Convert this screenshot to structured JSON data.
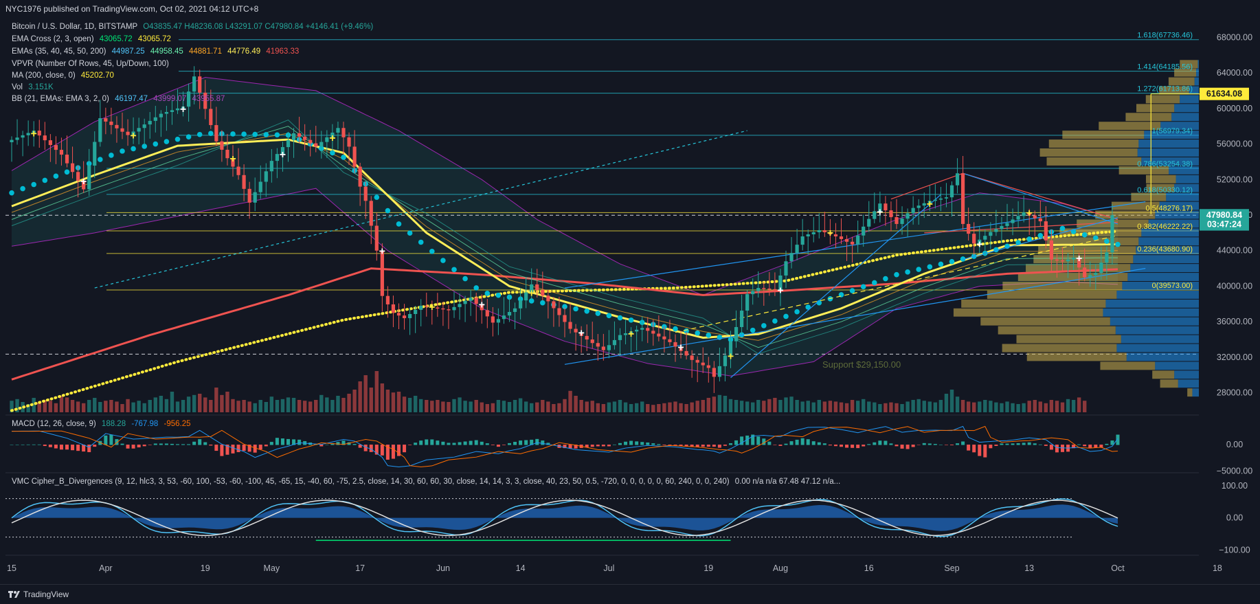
{
  "header": {
    "publisher": "NYC1976 published on TradingView.com, Oct 02, 2021 04:12 UTC+8"
  },
  "legend": {
    "symbol": "Bitcoin / U.S. Dollar, 1D, BITSTAMP",
    "ohlc": "O43835.47  H48236.08  L43291.07  C47980.84  +4146.41 (+9.46%)",
    "ema_cross": {
      "label": "EMA Cross (2, 3, open)",
      "v1": "43065.72",
      "v2": "43065.72"
    },
    "emas": {
      "label": "EMAs (35, 40, 45, 50, 200)",
      "v1": "44987.25",
      "v2": "44958.45",
      "v3": "44881.71",
      "v4": "44776.49",
      "v5": "41963.33"
    },
    "vpvr": {
      "label": "VPVR (Number Of Rows, 45, Up/Down, 100)"
    },
    "ma": {
      "label": "MA (200, close, 0)",
      "v1": "45202.70"
    },
    "vol": {
      "label": "Vol",
      "v1": "3.151K"
    },
    "bb": {
      "label": "BB (21, EMAs: EMA 3, 2, 0)",
      "v1": "46197.47",
      "v2": "43999.07",
      "v3": "43955.87"
    }
  },
  "macd_legend": {
    "label": "MACD (12, 26, close, 9)",
    "v1": "188.28",
    "v2": "-767.98",
    "v3": "-956.25"
  },
  "cipher_legend": {
    "label": "VMC Cipher_B_Divergences (9, 12, hlc3, 3, 53, -60, 100, -53, -60, -100, 45, -65, 15, -40, 60, -75, 2.5, close, 14, 30, 60, 60, 30, close, 14, 14, 3, 3, close, 40, 23, 50, 0.5, -720, 0, 0, 0, 0, 0, 60, 240, 0, 0, 240)",
    "tail": "0.00  n/a  n/a  67.48  47.12  n/a..."
  },
  "support_label": "Support $29,150.00",
  "fib_labels": [
    {
      "text": "1.618(67736.46)",
      "price": 67736.46
    },
    {
      "text": "1.414(64185.56)",
      "price": 64185.56
    },
    {
      "text": "1.272(61713.86)",
      "price": 61713.86
    },
    {
      "text": "1(56979.34)",
      "price": 56979.34
    },
    {
      "text": "0.786(53254.38)",
      "price": 53254.38
    },
    {
      "text": "0.618(50330.12)",
      "price": 50330.12
    },
    {
      "text": "0.5(48276.17)",
      "price": 48276.17
    },
    {
      "text": "0.382(46222.22)",
      "price": 46222.22
    },
    {
      "text": "0.236(43680.90)",
      "price": 43680.9
    },
    {
      "text": "0(39573.00)",
      "price": 39573.0
    }
  ],
  "price_tags": [
    {
      "text": "61634.08",
      "price": 61634.08,
      "bg": "#ffeb3b",
      "fg": "#131722"
    },
    {
      "text": "47980.84",
      "price": 47980.84,
      "bg": "#26a69a",
      "fg": "#ffffff"
    },
    {
      "text": "03:47:24",
      "price": 46950,
      "bg": "#26a69a",
      "fg": "#ffffff"
    }
  ],
  "chart_data": {
    "type": "candlestick",
    "symbol": "BTCUSD",
    "interval": "1D",
    "y_axis": {
      "ticks": [
        28000,
        32000,
        36000,
        40000,
        44000,
        48000,
        52000,
        56000,
        60000,
        64000,
        68000
      ],
      "labels": [
        "28000.00",
        "32000.00",
        "36000.00",
        "40000.00",
        "44000.00",
        "48000.00",
        "52000.00",
        "56000.00",
        "60000.00",
        "64000.00",
        "68000.00"
      ],
      "range": [
        25500,
        70500
      ]
    },
    "macd_axis": {
      "labels": [
        "0.00",
        "−5000.00"
      ],
      "values": [
        0,
        -5000
      ],
      "range": [
        -6200,
        3500
      ]
    },
    "cipher_axis": {
      "labels": [
        "100.00",
        "0.00",
        "−100.00"
      ],
      "values": [
        100,
        0,
        -100
      ],
      "range": [
        -110,
        115
      ]
    },
    "x_axis": {
      "labels": [
        "15",
        "Apr",
        "19",
        "May",
        "17",
        "Jun",
        "14",
        "Jul",
        "19",
        "Aug",
        "16",
        "Sep",
        "13",
        "Oct",
        "18"
      ],
      "day_index": [
        0,
        17,
        35,
        47,
        63,
        78,
        92,
        108,
        126,
        139,
        155,
        170,
        184,
        200,
        218
      ]
    },
    "price_path": [
      [
        0,
        56200
      ],
      [
        5,
        57500
      ],
      [
        10,
        54800
      ],
      [
        14,
        50900
      ],
      [
        17,
        58900
      ],
      [
        22,
        57000
      ],
      [
        28,
        59400
      ],
      [
        32,
        60200
      ],
      [
        34,
        63600
      ],
      [
        38,
        56300
      ],
      [
        42,
        52500
      ],
      [
        44,
        49400
      ],
      [
        48,
        54100
      ],
      [
        52,
        57200
      ],
      [
        56,
        55700
      ],
      [
        60,
        57800
      ],
      [
        62,
        55700
      ],
      [
        64,
        51200
      ],
      [
        65,
        49600
      ],
      [
        67,
        44000
      ],
      [
        68,
        38900
      ],
      [
        70,
        37000
      ],
      [
        72,
        36400
      ],
      [
        75,
        37800
      ],
      [
        80,
        37300
      ],
      [
        84,
        38700
      ],
      [
        88,
        35900
      ],
      [
        92,
        37500
      ],
      [
        95,
        40200
      ],
      [
        98,
        38300
      ],
      [
        102,
        35200
      ],
      [
        105,
        34000
      ],
      [
        108,
        32800
      ],
      [
        111,
        34500
      ],
      [
        115,
        35300
      ],
      [
        120,
        33700
      ],
      [
        124,
        31700
      ],
      [
        127,
        30800
      ],
      [
        128,
        29800
      ],
      [
        130,
        32200
      ],
      [
        132,
        35400
      ],
      [
        134,
        39100
      ],
      [
        136,
        39800
      ],
      [
        139,
        39600
      ],
      [
        141,
        42800
      ],
      [
        144,
        45600
      ],
      [
        147,
        46300
      ],
      [
        150,
        45600
      ],
      [
        153,
        44700
      ],
      [
        155,
        46700
      ],
      [
        158,
        49300
      ],
      [
        161,
        47000
      ],
      [
        164,
        48800
      ],
      [
        167,
        49600
      ],
      [
        170,
        50000
      ],
      [
        172,
        52700
      ],
      [
        173,
        47000
      ],
      [
        175,
        44800
      ],
      [
        178,
        46100
      ],
      [
        181,
        47100
      ],
      [
        184,
        48300
      ],
      [
        187,
        47300
      ],
      [
        189,
        43000
      ],
      [
        191,
        42800
      ],
      [
        193,
        43200
      ],
      [
        195,
        41000
      ],
      [
        197,
        41500
      ],
      [
        199,
        43800
      ],
      [
        200,
        47980
      ]
    ],
    "ma200": [
      [
        0,
        26000
      ],
      [
        30,
        31500
      ],
      [
        60,
        36200
      ],
      [
        90,
        39300
      ],
      [
        120,
        39800
      ],
      [
        140,
        40600
      ],
      [
        160,
        43500
      ],
      [
        180,
        45100
      ],
      [
        200,
        46200
      ]
    ],
    "ema200": [
      [
        0,
        29500
      ],
      [
        25,
        34500
      ],
      [
        50,
        39000
      ],
      [
        65,
        42000
      ],
      [
        85,
        41300
      ],
      [
        105,
        40300
      ],
      [
        125,
        39000
      ],
      [
        140,
        39500
      ],
      [
        160,
        40300
      ],
      [
        180,
        41400
      ],
      [
        200,
        41900
      ]
    ],
    "ema50": [
      [
        0,
        49000
      ],
      [
        15,
        52500
      ],
      [
        30,
        55800
      ],
      [
        50,
        56500
      ],
      [
        60,
        55000
      ],
      [
        75,
        46000
      ],
      [
        90,
        40000
      ],
      [
        110,
        36500
      ],
      [
        125,
        34200
      ],
      [
        135,
        34600
      ],
      [
        150,
        37500
      ],
      [
        165,
        41400
      ],
      [
        180,
        44600
      ],
      [
        200,
        44700
      ]
    ],
    "psar": [
      [
        0,
        50500
      ],
      [
        20,
        55200
      ],
      [
        35,
        57200
      ],
      [
        50,
        57000
      ],
      [
        60,
        54500
      ],
      [
        70,
        47000
      ],
      [
        85,
        39300
      ],
      [
        100,
        37700
      ],
      [
        115,
        35800
      ],
      [
        130,
        34000
      ],
      [
        145,
        37900
      ],
      [
        160,
        41300
      ],
      [
        175,
        43500
      ],
      [
        190,
        46500
      ],
      [
        200,
        44700
      ]
    ],
    "bb_upper": [
      [
        0,
        53000
      ],
      [
        15,
        58500
      ],
      [
        35,
        63500
      ],
      [
        55,
        62000
      ],
      [
        70,
        57500
      ],
      [
        85,
        52000
      ],
      [
        95,
        47500
      ],
      [
        110,
        42500
      ],
      [
        125,
        39000
      ],
      [
        140,
        42500
      ],
      [
        160,
        47500
      ],
      [
        175,
        50500
      ],
      [
        190,
        49300
      ],
      [
        200,
        47500
      ]
    ],
    "bb_lower": [
      [
        0,
        44500
      ],
      [
        15,
        46000
      ],
      [
        35,
        48500
      ],
      [
        55,
        51000
      ],
      [
        68,
        44000
      ],
      [
        85,
        37500
      ],
      [
        100,
        33800
      ],
      [
        115,
        31300
      ],
      [
        130,
        29900
      ],
      [
        145,
        31500
      ],
      [
        160,
        37500
      ],
      [
        175,
        40000
      ],
      [
        190,
        40500
      ],
      [
        200,
        40200
      ]
    ],
    "fib_price_levels": [
      67736.46,
      64185.56,
      61713.86,
      56979.34,
      53254.38,
      50330.12,
      48276.17,
      46222.22,
      43680.9,
      39573.0
    ],
    "support": 29150,
    "dashed_white": [
      32350,
      47980
    ],
    "vpvr_rows": [
      [
        64950,
        0.18,
        0.02
      ],
      [
        64000,
        0.22,
        0.05
      ],
      [
        63000,
        0.26,
        0.08
      ],
      [
        62000,
        0.3,
        0.18
      ],
      [
        61000,
        0.34,
        0.35
      ],
      [
        60000,
        0.38,
        0.45
      ],
      [
        59000,
        0.46,
        0.5
      ],
      [
        58000,
        0.62,
        0.7
      ],
      [
        57000,
        0.82,
        1.0
      ],
      [
        56000,
        0.9,
        1.1
      ],
      [
        55000,
        0.98,
        1.12
      ],
      [
        54000,
        0.95,
        1.05
      ],
      [
        53000,
        0.5,
        0.55
      ],
      [
        52000,
        0.3,
        0.42
      ],
      [
        51000,
        0.28,
        0.45
      ],
      [
        50000,
        0.35,
        0.6
      ],
      [
        49000,
        0.48,
        0.72
      ],
      [
        48000,
        0.6,
        0.8
      ],
      [
        47000,
        0.72,
        0.92
      ],
      [
        46000,
        0.82,
        1.05
      ],
      [
        45000,
        0.92,
        1.1
      ],
      [
        44000,
        0.98,
        1.15
      ],
      [
        43000,
        1.0,
        1.2
      ],
      [
        42000,
        1.05,
        1.25
      ],
      [
        41000,
        1.1,
        1.3
      ],
      [
        40000,
        1.2,
        1.4
      ],
      [
        39000,
        1.3,
        1.5
      ],
      [
        38000,
        1.45,
        1.7
      ],
      [
        37000,
        1.5,
        1.75
      ],
      [
        36000,
        1.3,
        1.62
      ],
      [
        35000,
        1.18,
        1.52
      ],
      [
        34000,
        1.05,
        1.42
      ],
      [
        33000,
        1.15,
        1.5
      ],
      [
        32000,
        1.0,
        1.32
      ],
      [
        31000,
        0.55,
        0.8
      ],
      [
        30000,
        0.22,
        0.45
      ],
      [
        29000,
        0.18,
        0.38
      ],
      [
        28000,
        0.05,
        0.12
      ]
    ],
    "volume": [
      0.28,
      0.32,
      0.25,
      0.2,
      0.35,
      0.24,
      0.3,
      0.28,
      0.22,
      0.4,
      0.36,
      0.3,
      0.26,
      0.22,
      0.3,
      0.35,
      0.25,
      0.28,
      0.3,
      0.26,
      0.2,
      0.32,
      0.24,
      0.28,
      0.22,
      0.3,
      0.36,
      0.4,
      0.32,
      0.5,
      0.26,
      0.3,
      0.38,
      0.42,
      0.45,
      0.36,
      0.3,
      0.6,
      0.42,
      0.5,
      0.32,
      0.28,
      0.3,
      0.26,
      0.22,
      0.3,
      0.25,
      0.38,
      0.3,
      0.32,
      0.36,
      0.35,
      0.3,
      0.28,
      0.26,
      0.3,
      0.42,
      0.36,
      0.3,
      0.4,
      0.35,
      0.45,
      0.55,
      0.75,
      0.9,
      0.6,
      1.0,
      0.7,
      0.55,
      0.48,
      0.5,
      0.38,
      0.35,
      0.4,
      0.32,
      0.3,
      0.28,
      0.3,
      0.26,
      0.25,
      0.32,
      0.36,
      0.28,
      0.26,
      0.3,
      0.24,
      0.2,
      0.22,
      0.3,
      0.28,
      0.25,
      0.3,
      0.34,
      0.26,
      0.22,
      0.24,
      0.3,
      0.26,
      0.2,
      0.22,
      0.32,
      0.52,
      0.4,
      0.3,
      0.26,
      0.28,
      0.22,
      0.2,
      0.24,
      0.26,
      0.3,
      0.24,
      0.2,
      0.22,
      0.26,
      0.2,
      0.18,
      0.2,
      0.22,
      0.24,
      0.26,
      0.22,
      0.2,
      0.24,
      0.28,
      0.3,
      0.35,
      0.38,
      0.42,
      0.4,
      0.32,
      0.3,
      0.28,
      0.26,
      0.24,
      0.3,
      0.28,
      0.32,
      0.35,
      0.3,
      0.36,
      0.38,
      0.3,
      0.26,
      0.28,
      0.24,
      0.3,
      0.26,
      0.28,
      0.26,
      0.24,
      0.22,
      0.3,
      0.28,
      0.32,
      0.26,
      0.24,
      0.2,
      0.22,
      0.24,
      0.22,
      0.2,
      0.26,
      0.3,
      0.32,
      0.28,
      0.26,
      0.24,
      0.3,
      0.45,
      0.55,
      0.38,
      0.3,
      0.26,
      0.24,
      0.26,
      0.3,
      0.28,
      0.24,
      0.22,
      0.26,
      0.22,
      0.2,
      0.22,
      0.28,
      0.3,
      0.26,
      0.22,
      0.3,
      0.28,
      0.24,
      0.32,
      0.3,
      0.36,
      0.28
    ]
  }
}
